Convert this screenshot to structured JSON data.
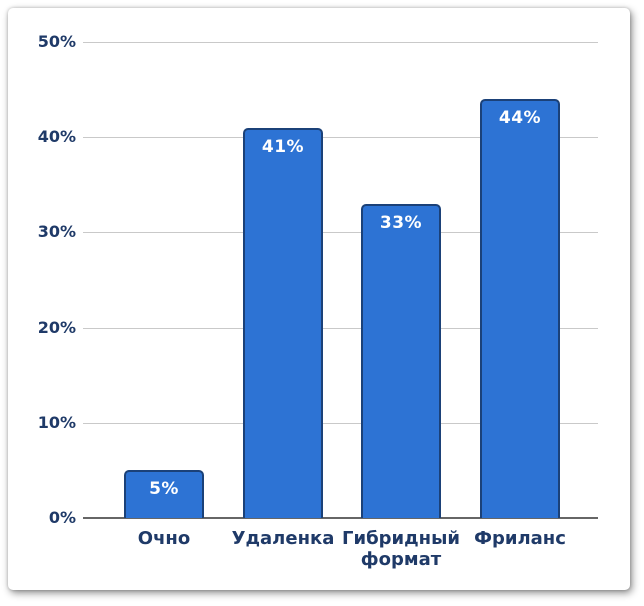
{
  "chart_data": {
    "type": "bar",
    "title": "",
    "xlabel": "",
    "ylabel": "",
    "categories": [
      "Очно",
      "Удаленка",
      "Гибридный формат",
      "Фриланс"
    ],
    "values": [
      5,
      41,
      33,
      44
    ],
    "bar_labels": [
      "5%",
      "41%",
      "33%",
      "44%"
    ],
    "yticks": [
      "0%",
      "10%",
      "20%",
      "30%",
      "40%",
      "50%"
    ],
    "ytick_values": [
      0,
      10,
      20,
      30,
      40,
      50
    ],
    "ylim": [
      0,
      50
    ],
    "grid": true,
    "legend": false,
    "colors": {
      "bar_fill": "#2d73d4",
      "bar_border": "#1b4178",
      "bar_label_text": "#ffffff",
      "axis_text": "#1f3a68",
      "gridline": "#c9c9c9",
      "baseline": "#666666"
    }
  }
}
